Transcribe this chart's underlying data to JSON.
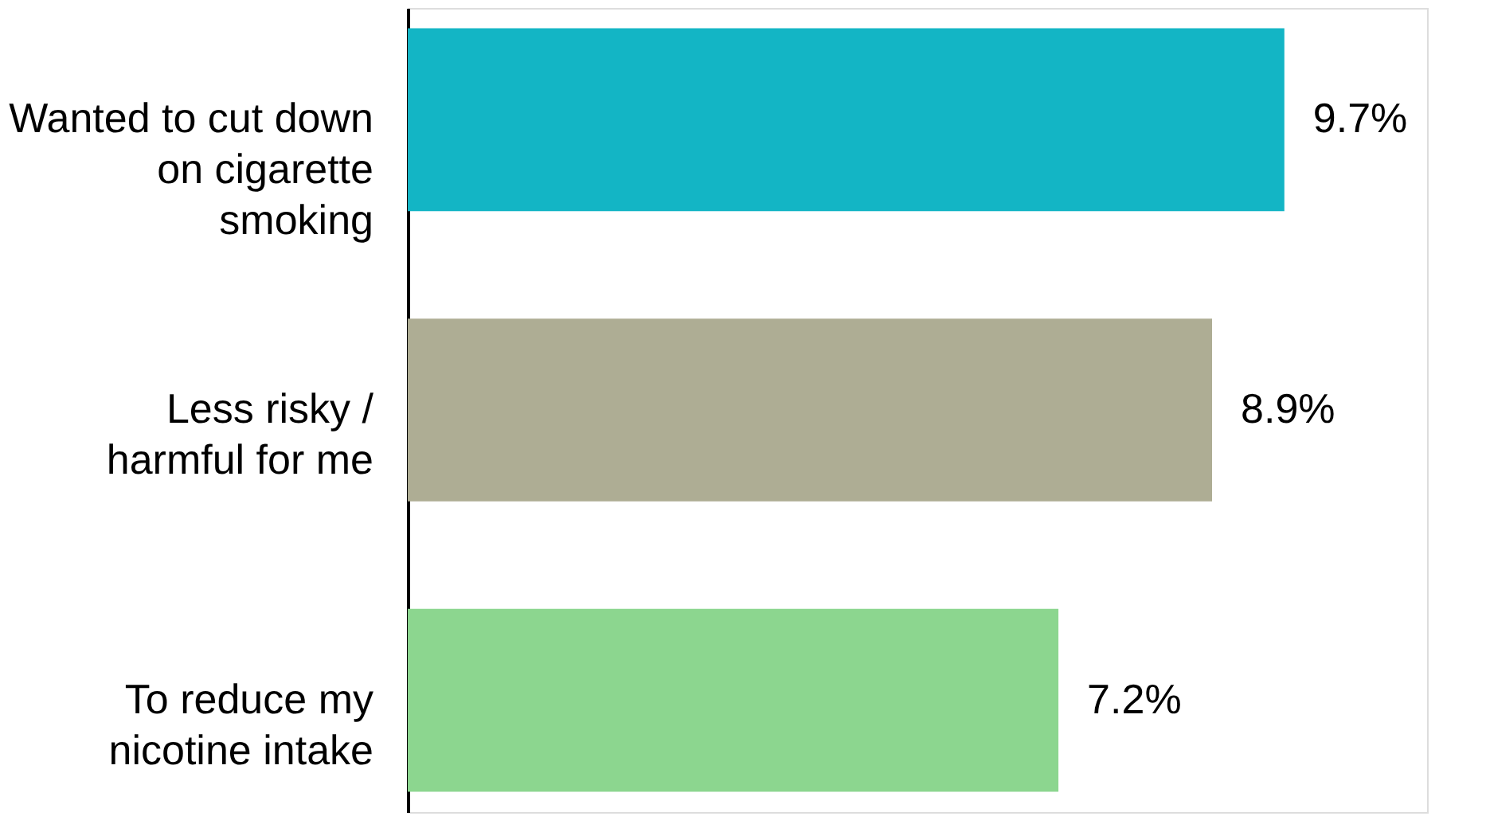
{
  "chart_data": {
    "type": "bar",
    "orientation": "horizontal",
    "categories": [
      "Wanted to cut down on cigarette smoking",
      "Less risky / harmful for me",
      "To reduce my nicotine intake"
    ],
    "values": [
      9.7,
      8.9,
      7.2
    ],
    "colors": [
      "#13b5c5",
      "#aead94",
      "#8cd68f"
    ],
    "value_labels": [
      "9.7%",
      "8.9%",
      "7.2%"
    ],
    "grid": false
  }
}
